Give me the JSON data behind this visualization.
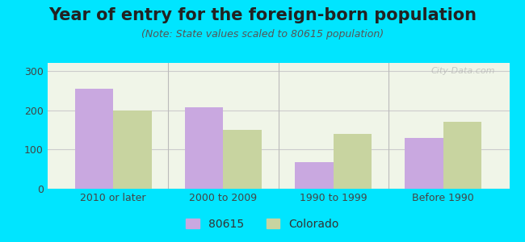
{
  "title": "Year of entry for the foreign-born population",
  "subtitle": "(Note: State values scaled to 80615 population)",
  "categories": [
    "2010 or later",
    "2000 to 2009",
    "1990 to 1999",
    "Before 1990"
  ],
  "values_80615": [
    255,
    207,
    67,
    130
  ],
  "values_colorado": [
    198,
    150,
    140,
    170
  ],
  "bar_color_80615": "#c9a8e0",
  "bar_color_colorado": "#c8d4a0",
  "background_outer": "#00e5ff",
  "background_chart": "#f0f5e8",
  "ylim": [
    0,
    320
  ],
  "yticks": [
    0,
    100,
    200,
    300
  ],
  "legend_labels": [
    "80615",
    "Colorado"
  ],
  "title_fontsize": 15,
  "subtitle_fontsize": 9,
  "tick_fontsize": 9,
  "legend_fontsize": 10,
  "bar_width": 0.35,
  "watermark": "City-Data.com"
}
